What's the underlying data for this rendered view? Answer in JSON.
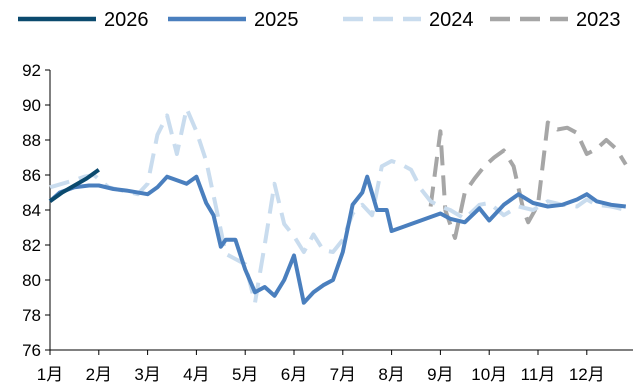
{
  "chart_data": {
    "type": "line",
    "title": "",
    "xlabel": "",
    "ylabel": "",
    "ylim": [
      76,
      92
    ],
    "yticks": [
      76,
      78,
      80,
      82,
      84,
      86,
      88,
      90,
      92
    ],
    "categories": [
      "1月",
      "2月",
      "3月",
      "4月",
      "5月",
      "6月",
      "7月",
      "8月",
      "9月",
      "10月",
      "11月",
      "12月"
    ],
    "legend_position": "top",
    "grid": false,
    "series": [
      {
        "name": "2026",
        "color": "#0b4a6e",
        "dash": "solid",
        "x": [
          0,
          0.25,
          0.5,
          0.75,
          1.0
        ],
        "values": [
          84.5,
          85.0,
          85.4,
          85.8,
          86.3
        ]
      },
      {
        "name": "2025",
        "color": "#4a7fbe",
        "dash": "solid",
        "x": [
          0,
          0.2,
          0.5,
          0.8,
          1.0,
          1.3,
          1.6,
          2.0,
          2.2,
          2.4,
          2.6,
          2.8,
          3.0,
          3.2,
          3.35,
          3.5,
          3.6,
          3.8,
          4.0,
          4.2,
          4.4,
          4.6,
          4.8,
          5.0,
          5.2,
          5.4,
          5.6,
          5.8,
          6.0,
          6.2,
          6.4,
          6.5,
          6.7,
          6.9,
          7.0,
          7.2,
          7.4,
          7.6,
          7.8,
          8.0,
          8.2,
          8.5,
          8.8,
          9.0,
          9.3,
          9.6,
          9.9,
          10.2,
          10.5,
          10.8,
          11.0,
          11.2,
          11.5,
          11.8
        ],
        "values": [
          84.5,
          85.0,
          85.3,
          85.4,
          85.4,
          85.2,
          85.1,
          84.9,
          85.3,
          85.9,
          85.7,
          85.5,
          85.9,
          84.4,
          83.7,
          81.9,
          82.3,
          82.3,
          80.6,
          79.3,
          79.6,
          79.1,
          80.0,
          81.4,
          78.7,
          79.3,
          79.7,
          80.0,
          81.6,
          84.3,
          85.0,
          85.9,
          84.0,
          84.0,
          82.8,
          83.0,
          83.2,
          83.4,
          83.6,
          83.8,
          83.5,
          83.3,
          84.1,
          83.4,
          84.3,
          84.9,
          84.4,
          84.2,
          84.3,
          84.6,
          84.9,
          84.5,
          84.3,
          84.2
        ]
      },
      {
        "name": "2024",
        "color": "#c9dcee",
        "dash": "dashed",
        "x": [
          0,
          0.5,
          0.7,
          0.9,
          1.2,
          1.5,
          1.8,
          2.0,
          2.2,
          2.4,
          2.6,
          2.8,
          3.0,
          3.2,
          3.4,
          3.6,
          3.8,
          4.0,
          4.2,
          4.4,
          4.6,
          4.8,
          5.0,
          5.2,
          5.4,
          5.6,
          5.8,
          6.0,
          6.2,
          6.4,
          6.6,
          6.8,
          7.0,
          7.2,
          7.4,
          7.6,
          7.8,
          8.0,
          8.2,
          8.5,
          8.8,
          9.0,
          9.3,
          9.6,
          9.9,
          10.2,
          10.5,
          10.8,
          11.0,
          11.2,
          11.5,
          11.8
        ],
        "values": [
          85.3,
          85.7,
          85.9,
          86.0,
          85.3,
          85.1,
          84.9,
          85.5,
          88.3,
          89.4,
          87.2,
          89.8,
          88.5,
          86.8,
          84.2,
          81.5,
          81.2,
          80.9,
          78.7,
          82.0,
          85.5,
          83.2,
          82.5,
          81.6,
          82.6,
          81.7,
          81.6,
          82.3,
          83.8,
          84.3,
          83.7,
          86.5,
          86.8,
          86.6,
          86.3,
          85.2,
          84.5,
          84.2,
          84.0,
          83.5,
          84.3,
          84.4,
          83.7,
          84.2,
          84.0,
          84.5,
          84.3,
          84.2,
          84.6,
          84.3,
          84.2,
          84.0
        ]
      },
      {
        "name": "2023",
        "color": "#a6a6a6",
        "dash": "dashed",
        "x": [
          7.8,
          8.0,
          8.1,
          8.3,
          8.5,
          8.7,
          8.9,
          9.1,
          9.3,
          9.5,
          9.7,
          9.8,
          10.0,
          10.2,
          10.4,
          10.6,
          10.8,
          11.0,
          11.2,
          11.4,
          11.6,
          11.8
        ],
        "values": [
          84.2,
          88.5,
          84.0,
          82.4,
          85.0,
          85.8,
          86.5,
          87.0,
          87.4,
          86.5,
          84.0,
          83.3,
          84.3,
          89.0,
          88.6,
          88.7,
          88.4,
          87.2,
          87.5,
          88.0,
          87.5,
          86.6
        ]
      }
    ]
  }
}
